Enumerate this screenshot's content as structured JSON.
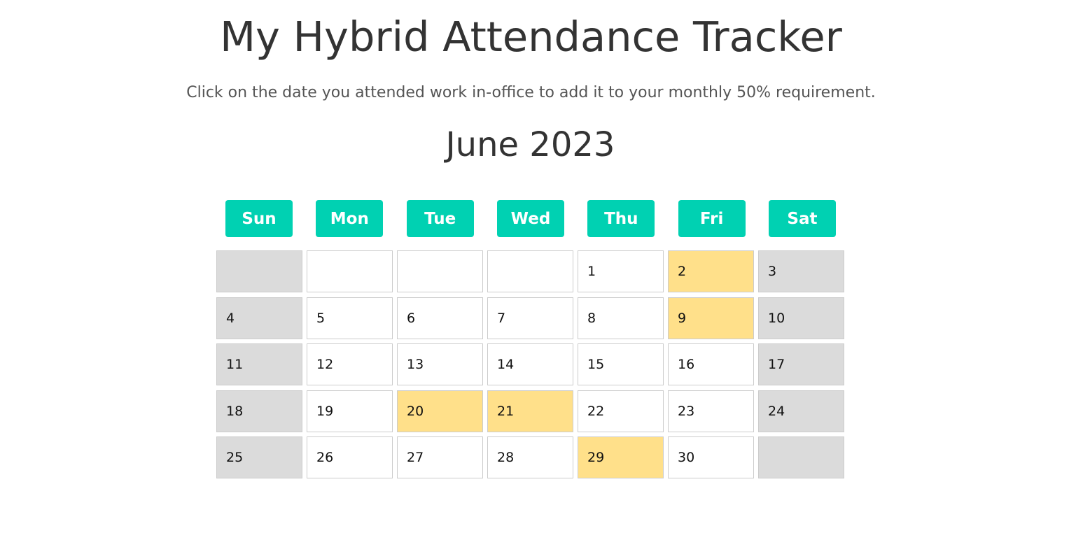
{
  "header": {
    "title": "My Hybrid Attendance Tracker",
    "subtitle": "Click on the date you attended work in-office to add it to your monthly 50% requirement."
  },
  "calendar": {
    "month_label": "June 2023",
    "weekdays": [
      "Sun",
      "Mon",
      "Tue",
      "Wed",
      "Thu",
      "Fri",
      "Sat"
    ],
    "weeks": [
      [
        {
          "label": "",
          "kind": "weekend"
        },
        {
          "label": "",
          "kind": "weekday"
        },
        {
          "label": "",
          "kind": "weekday"
        },
        {
          "label": "",
          "kind": "weekday"
        },
        {
          "label": "1",
          "kind": "weekday"
        },
        {
          "label": "2",
          "kind": "attended"
        },
        {
          "label": "3",
          "kind": "weekend"
        }
      ],
      [
        {
          "label": "4",
          "kind": "weekend"
        },
        {
          "label": "5",
          "kind": "weekday"
        },
        {
          "label": "6",
          "kind": "weekday"
        },
        {
          "label": "7",
          "kind": "weekday"
        },
        {
          "label": "8",
          "kind": "weekday"
        },
        {
          "label": "9",
          "kind": "attended"
        },
        {
          "label": "10",
          "kind": "weekend"
        }
      ],
      [
        {
          "label": "11",
          "kind": "weekend"
        },
        {
          "label": "12",
          "kind": "weekday"
        },
        {
          "label": "13",
          "kind": "weekday"
        },
        {
          "label": "14",
          "kind": "weekday"
        },
        {
          "label": "15",
          "kind": "weekday"
        },
        {
          "label": "16",
          "kind": "weekday"
        },
        {
          "label": "17",
          "kind": "weekend"
        }
      ],
      [
        {
          "label": "18",
          "kind": "weekend"
        },
        {
          "label": "19",
          "kind": "weekday"
        },
        {
          "label": "20",
          "kind": "attended"
        },
        {
          "label": "21",
          "kind": "attended"
        },
        {
          "label": "22",
          "kind": "weekday"
        },
        {
          "label": "23",
          "kind": "weekday"
        },
        {
          "label": "24",
          "kind": "weekend"
        }
      ],
      [
        {
          "label": "25",
          "kind": "weekend"
        },
        {
          "label": "26",
          "kind": "weekday"
        },
        {
          "label": "27",
          "kind": "weekday"
        },
        {
          "label": "28",
          "kind": "weekday"
        },
        {
          "label": "29",
          "kind": "attended"
        },
        {
          "label": "30",
          "kind": "weekday"
        },
        {
          "label": "",
          "kind": "weekend"
        }
      ]
    ]
  },
  "colors": {
    "weekday_header": "#00d1b2",
    "weekend_cell": "#dbdbdb",
    "attended_cell": "#ffe08a",
    "empty_cell": "#ffffff"
  }
}
